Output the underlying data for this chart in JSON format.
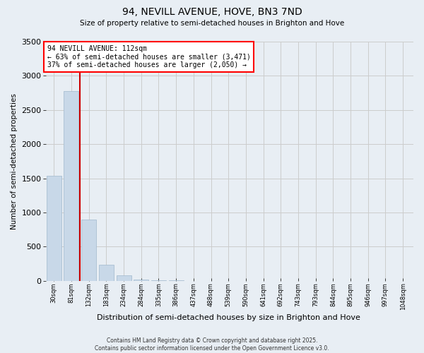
{
  "title": "94, NEVILL AVENUE, HOVE, BN3 7ND",
  "subtitle": "Size of property relative to semi-detached houses in Brighton and Hove",
  "xlabel": "Distribution of semi-detached houses by size in Brighton and Hove",
  "ylabel": "Number of semi-detached properties",
  "bin_labels": [
    "30sqm",
    "81sqm",
    "132sqm",
    "183sqm",
    "234sqm",
    "284sqm",
    "335sqm",
    "386sqm",
    "437sqm",
    "488sqm",
    "539sqm",
    "590sqm",
    "641sqm",
    "692sqm",
    "743sqm",
    "793sqm",
    "844sqm",
    "895sqm",
    "946sqm",
    "997sqm",
    "1048sqm"
  ],
  "bar_heights": [
    1540,
    2780,
    900,
    230,
    80,
    20,
    8,
    2,
    0,
    0,
    0,
    0,
    0,
    0,
    0,
    0,
    0,
    0,
    0,
    0,
    0
  ],
  "bar_color": "#c8d8e8",
  "bar_edgecolor": "#a0b8cc",
  "property_label": "94 NEVILL AVENUE: 112sqm",
  "pct_smaller": 63,
  "pct_larger": 37,
  "n_smaller": 3471,
  "n_larger": 2050,
  "vline_x_bin": 1.5,
  "ylim": [
    0,
    3500
  ],
  "yticks": [
    0,
    500,
    1000,
    1500,
    2000,
    2500,
    3000,
    3500
  ],
  "vline_color": "#cc0000",
  "grid_color": "#cccccc",
  "background_color": "#e8eef4",
  "footer_line1": "Contains HM Land Registry data © Crown copyright and database right 2025.",
  "footer_line2": "Contains public sector information licensed under the Open Government Licence v3.0."
}
